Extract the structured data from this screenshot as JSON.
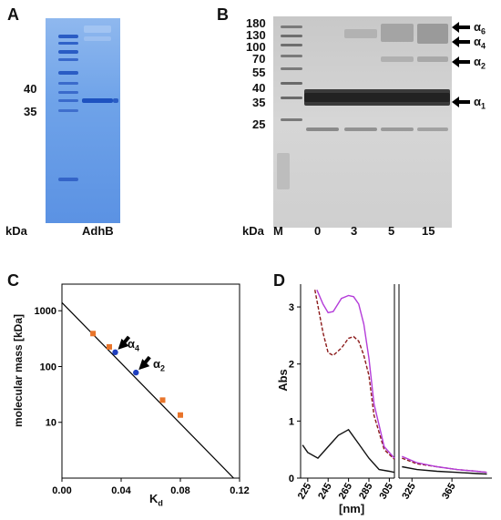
{
  "panels": {
    "A": {
      "letter": "A",
      "markers": [
        "40",
        "35"
      ],
      "kda_label": "kDa",
      "lane_label": "AdhB"
    },
    "B": {
      "letter": "B",
      "markers": [
        "180",
        "130",
        "100",
        "70",
        "55",
        "40",
        "35",
        "25"
      ],
      "kda_label": "kDa",
      "m_label": "M",
      "lane_labels": [
        "0",
        "3",
        "5",
        "15"
      ],
      "species": [
        {
          "base": "α",
          "sub": "6"
        },
        {
          "base": "α",
          "sub": "4"
        },
        {
          "base": "α",
          "sub": "2"
        },
        {
          "base": "α",
          "sub": "1"
        }
      ]
    },
    "C": {
      "letter": "C",
      "ylabel": "molecular mass [kDa]",
      "xlabel_base": "K",
      "xlabel_sub": "d",
      "arrow_labels": [
        {
          "base": "α",
          "sub": "4"
        },
        {
          "base": "α",
          "sub": "2"
        }
      ]
    },
    "D": {
      "letter": "D",
      "ylabel": "Abs",
      "xlabel": "[nm]"
    }
  },
  "chart_data": [
    {
      "type": "scatter",
      "panel": "C",
      "xlabel": "Kd",
      "ylabel": "molecular mass [kDa]",
      "xlim": [
        0,
        0.12
      ],
      "ylim": [
        1,
        3000
      ],
      "y_scale": "log",
      "x_ticks": [
        "0.00",
        "0.04",
        "0.08",
        "0.12"
      ],
      "y_ticks": [
        "10",
        "100",
        "1000"
      ],
      "fit_line": {
        "x": [
          0.0,
          0.116
        ],
        "y": [
          1400,
          1
        ]
      },
      "series": [
        {
          "color": "#e8742a",
          "x": [
            0.021,
            0.032,
            0.068,
            0.08
          ],
          "y": [
            390,
            225,
            25,
            13.5
          ]
        },
        {
          "color": "#1f3fbf",
          "x": [
            0.036,
            0.05
          ],
          "y": [
            180,
            78
          ]
        }
      ],
      "annotations": [
        "α4",
        "α2"
      ]
    },
    {
      "type": "line",
      "panel": "D",
      "xlabel": "[nm]",
      "ylabel": "Abs",
      "xlim": [
        218,
        405
      ],
      "ylim": [
        0,
        3.4
      ],
      "x_ticks": [
        "225",
        "245",
        "265",
        "285",
        "305",
        "325",
        "365"
      ],
      "y_ticks": [
        "0",
        "1",
        "2",
        "3"
      ],
      "axis_break_after": 310,
      "series": [
        {
          "style": "solid",
          "color": "#111111",
          "x": [
            220,
            225,
            235,
            245,
            255,
            265,
            275,
            285,
            295,
            305,
            310,
            315,
            330,
            350,
            370,
            390,
            400
          ],
          "y": [
            0.58,
            0.45,
            0.35,
            0.55,
            0.75,
            0.85,
            0.6,
            0.35,
            0.15,
            0.12,
            0.1,
            0.2,
            0.15,
            0.12,
            0.1,
            0.08,
            0.07
          ]
        },
        {
          "style": "dashed",
          "color": "#8b1a1a",
          "x": [
            232,
            240,
            245,
            250,
            258,
            265,
            270,
            275,
            280,
            285,
            290,
            300,
            310,
            315,
            330,
            350,
            370,
            390,
            400
          ],
          "y": [
            3.3,
            2.55,
            2.2,
            2.15,
            2.28,
            2.45,
            2.48,
            2.4,
            2.15,
            1.8,
            1.1,
            0.5,
            0.33,
            0.35,
            0.25,
            0.2,
            0.15,
            0.12,
            0.1
          ]
        },
        {
          "style": "solid",
          "color": "#b43dd9",
          "x": [
            234,
            240,
            245,
            250,
            258,
            265,
            270,
            275,
            280,
            285,
            290,
            300,
            310,
            315,
            330,
            350,
            370,
            390,
            400
          ],
          "y": [
            3.3,
            3.05,
            2.9,
            2.92,
            3.15,
            3.2,
            3.18,
            3.05,
            2.7,
            2.1,
            1.3,
            0.55,
            0.35,
            0.38,
            0.27,
            0.2,
            0.15,
            0.12,
            0.1
          ]
        }
      ]
    }
  ]
}
